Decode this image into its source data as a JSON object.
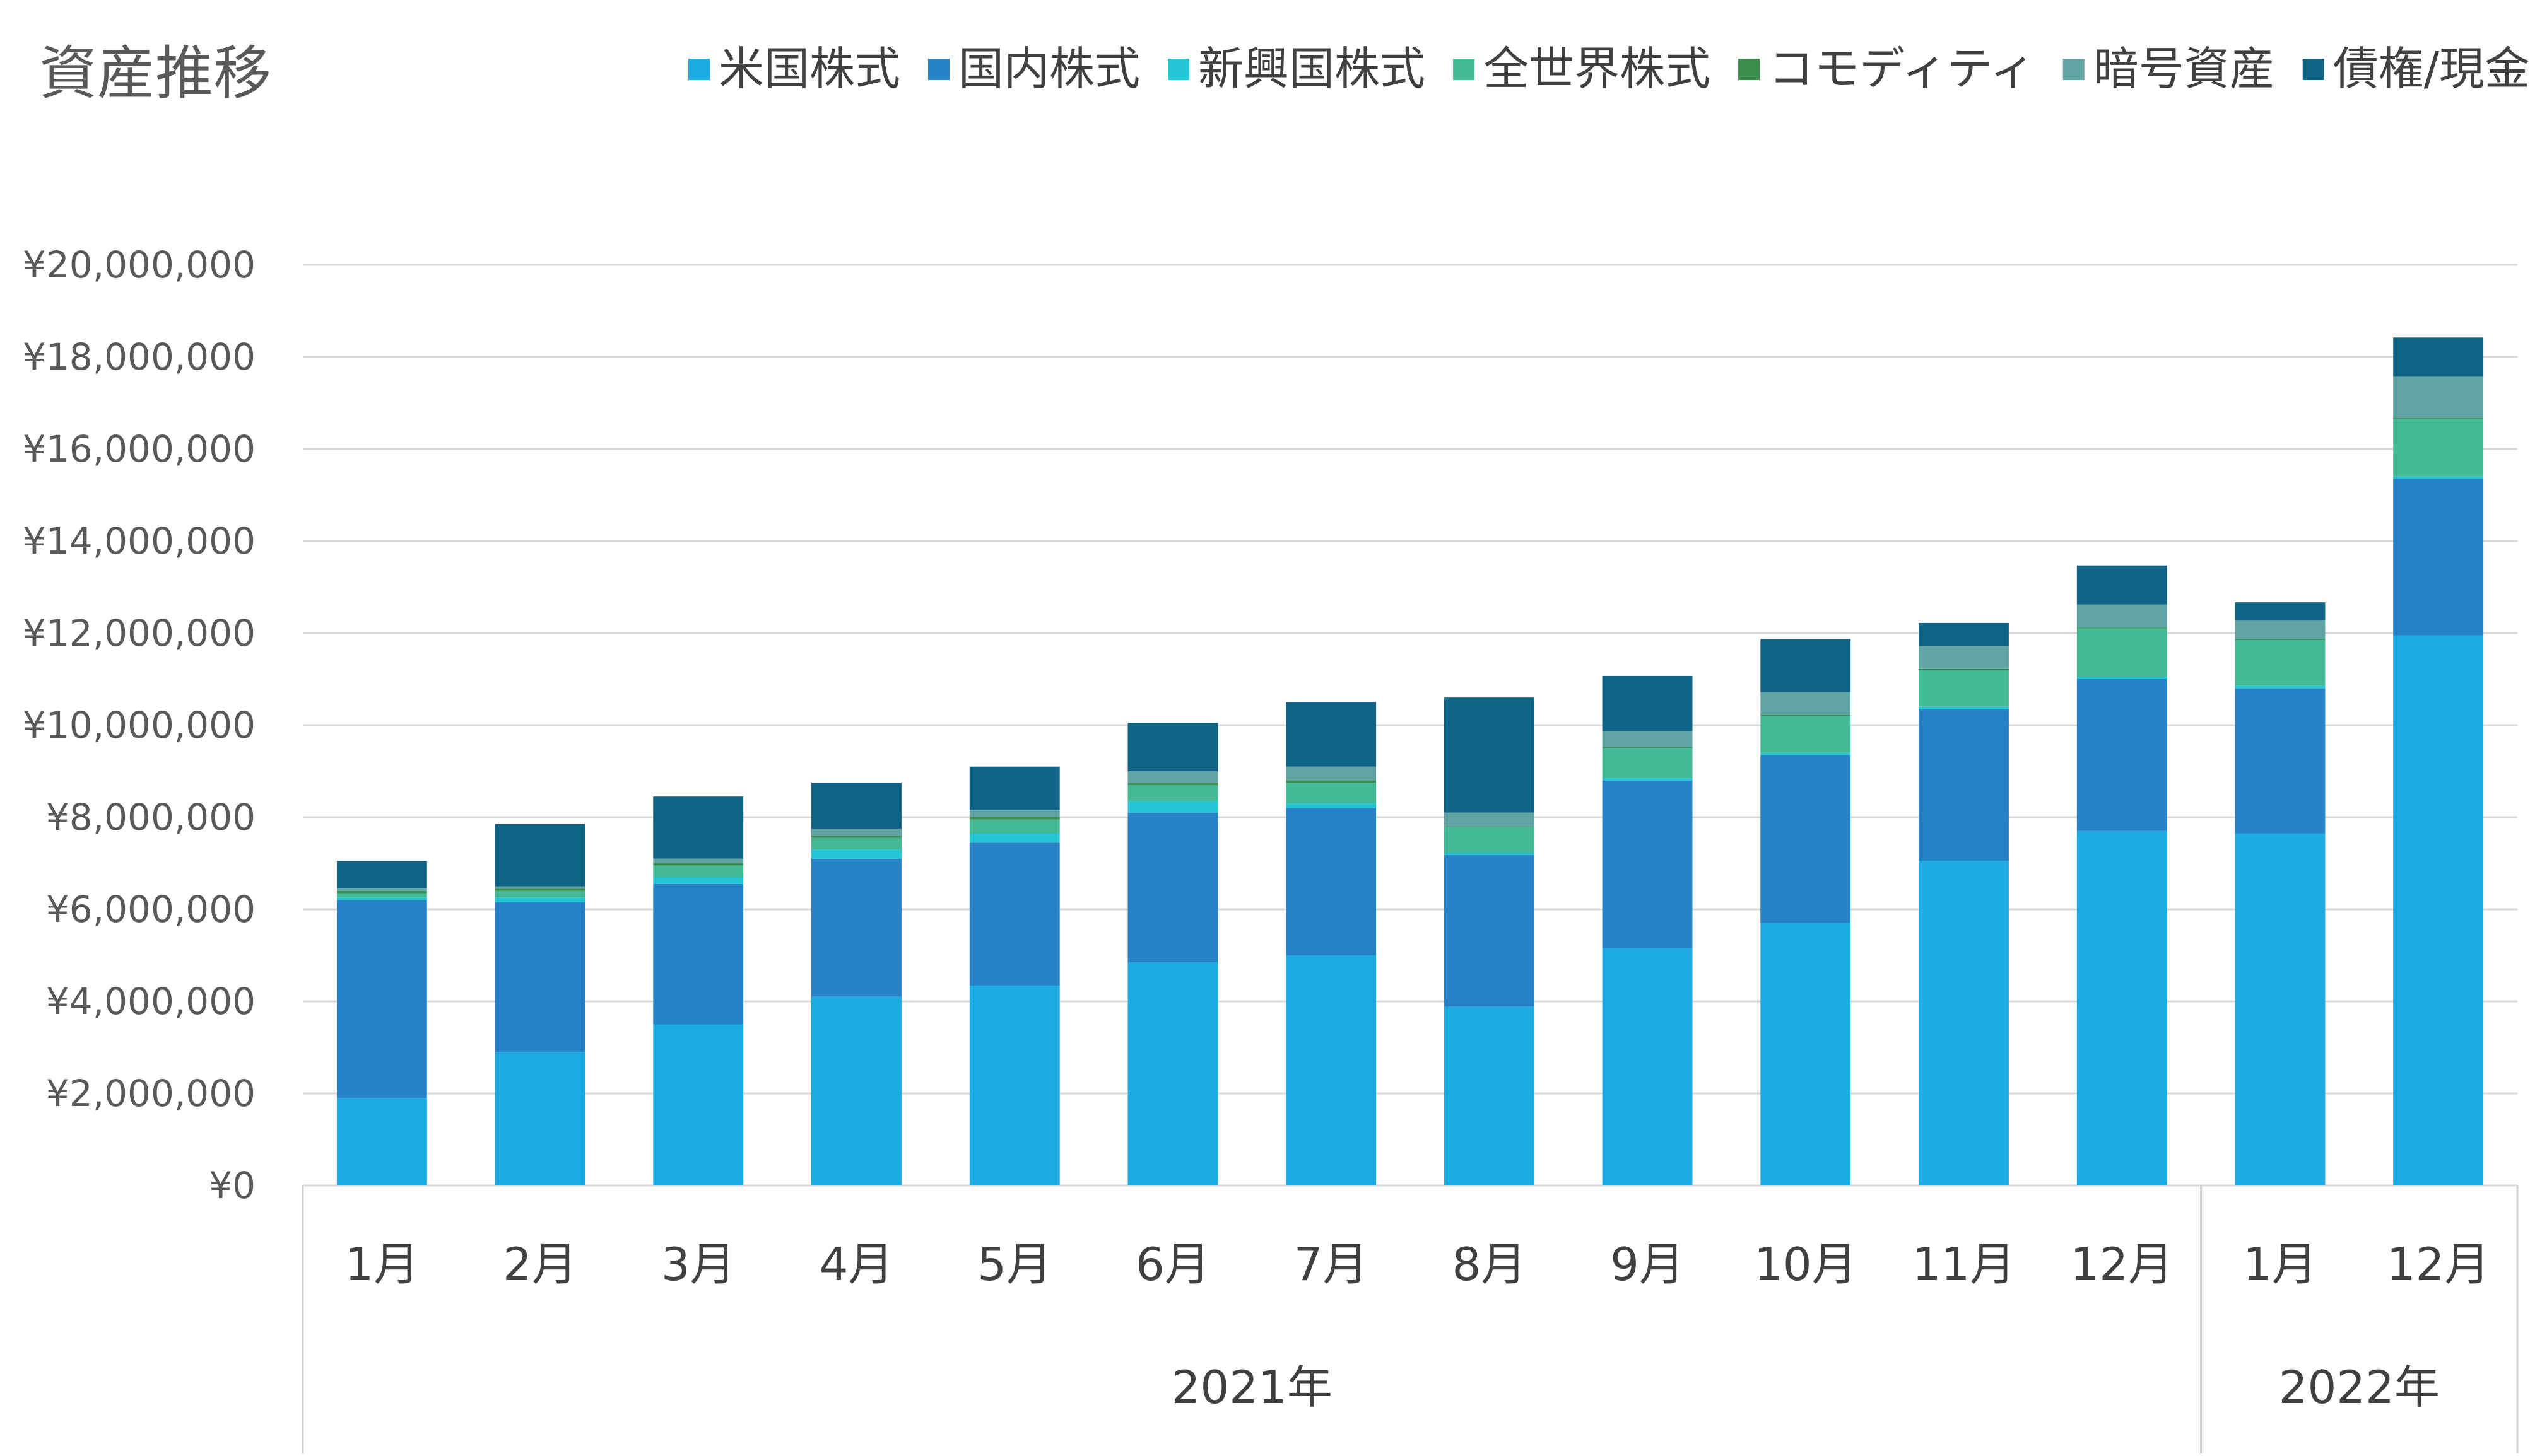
{
  "chart_data": {
    "type": "bar",
    "stacked": true,
    "title": "資産推移",
    "legend_position": "top-right",
    "grid": true,
    "xlabel": "",
    "ylabel": "",
    "ylim": [
      0,
      20000000
    ],
    "yticks": [
      {
        "value": 0,
        "label": "¥0"
      },
      {
        "value": 2000000,
        "label": "¥2,000,000"
      },
      {
        "value": 4000000,
        "label": "¥4,000,000"
      },
      {
        "value": 6000000,
        "label": "¥6,000,000"
      },
      {
        "value": 8000000,
        "label": "¥8,000,000"
      },
      {
        "value": 10000000,
        "label": "¥10,000,000"
      },
      {
        "value": 12000000,
        "label": "¥12,000,000"
      },
      {
        "value": 14000000,
        "label": "¥14,000,000"
      },
      {
        "value": 16000000,
        "label": "¥16,000,000"
      },
      {
        "value": 18000000,
        "label": "¥18,000,000"
      },
      {
        "value": 20000000,
        "label": "¥20,000,000"
      }
    ],
    "categories": [
      "1月",
      "2月",
      "3月",
      "4月",
      "5月",
      "6月",
      "7月",
      "8月",
      "9月",
      "10月",
      "11月",
      "12月",
      "1月",
      "12月"
    ],
    "category_groups": [
      {
        "label": "2021年",
        "count": 12
      },
      {
        "label": "2022年",
        "count": 2
      }
    ],
    "series": [
      {
        "name": "米国株式",
        "color": "#1eabe3",
        "values": [
          1900000,
          2900000,
          3500000,
          4100000,
          4350000,
          4850000,
          5000000,
          3880000,
          5150000,
          5700000,
          7050000,
          7700000,
          7650000,
          11950000
        ]
      },
      {
        "name": "国内株式",
        "color": "#2882c8",
        "values": [
          4300000,
          3250000,
          3050000,
          3000000,
          3100000,
          3250000,
          3200000,
          3300000,
          3650000,
          3650000,
          3300000,
          3300000,
          3150000,
          3400000
        ]
      },
      {
        "name": "新興国株式",
        "color": "#26c5d6",
        "values": [
          50000,
          100000,
          150000,
          200000,
          200000,
          250000,
          100000,
          50000,
          50000,
          50000,
          50000,
          50000,
          50000,
          50000
        ]
      },
      {
        "name": "全世界株式",
        "color": "#44b995",
        "values": [
          100000,
          150000,
          250000,
          250000,
          300000,
          350000,
          450000,
          550000,
          650000,
          800000,
          800000,
          1050000,
          1000000,
          1250000
        ]
      },
      {
        "name": "コモディティ",
        "color": "#3b8d4e",
        "values": [
          50000,
          50000,
          50000,
          50000,
          50000,
          50000,
          50000,
          20000,
          20000,
          20000,
          20000,
          20000,
          20000,
          20000
        ]
      },
      {
        "name": "暗号資産",
        "color": "#5fa3a2",
        "values": [
          50000,
          50000,
          100000,
          150000,
          150000,
          250000,
          300000,
          300000,
          350000,
          500000,
          500000,
          500000,
          400000,
          900000
        ]
      },
      {
        "name": "債権/現金",
        "color": "#0f6384",
        "values": [
          600000,
          1350000,
          1350000,
          1000000,
          950000,
          1050000,
          1400000,
          2500000,
          1200000,
          1150000,
          500000,
          850000,
          400000,
          850000
        ]
      }
    ]
  }
}
